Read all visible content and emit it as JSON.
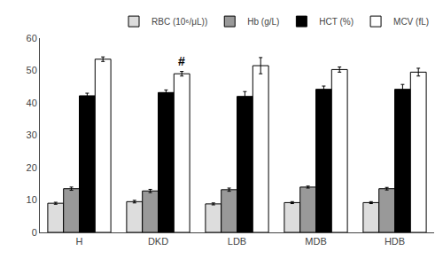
{
  "chart_data": {
    "type": "bar",
    "categories": [
      "H",
      "DKD",
      "LDB",
      "MDB",
      "HDB"
    ],
    "series": [
      {
        "name": "RBC (10⁶/μL))",
        "color": "#dddddd",
        "values": [
          9.0,
          9.5,
          8.8,
          9.2,
          9.2
        ],
        "errors": [
          0.3,
          0.4,
          0.3,
          0.3,
          0.3
        ]
      },
      {
        "name": "Hb (g/L)",
        "color": "#999999",
        "values": [
          13.5,
          12.8,
          13.2,
          14.0,
          13.5
        ],
        "errors": [
          0.5,
          0.5,
          0.5,
          0.3,
          0.4
        ]
      },
      {
        "name": "HCT (%)",
        "color": "#000000",
        "values": [
          42.2,
          43.2,
          42.0,
          44.2,
          44.2
        ],
        "errors": [
          0.8,
          0.8,
          1.5,
          1.0,
          1.5
        ]
      },
      {
        "name": "MCV (fL)",
        "color": "#ffffff",
        "values": [
          53.5,
          49.0,
          51.5,
          50.3,
          49.5
        ],
        "errors": [
          0.7,
          0.7,
          2.5,
          0.8,
          1.2
        ]
      }
    ],
    "annotations": [
      {
        "text": "#",
        "x": "DKD",
        "series": "MCV (fL)"
      }
    ],
    "ylim": [
      0,
      60
    ],
    "yticks": [
      0,
      10,
      20,
      30,
      40,
      50,
      60
    ],
    "grid": false,
    "legend": "upper right"
  }
}
